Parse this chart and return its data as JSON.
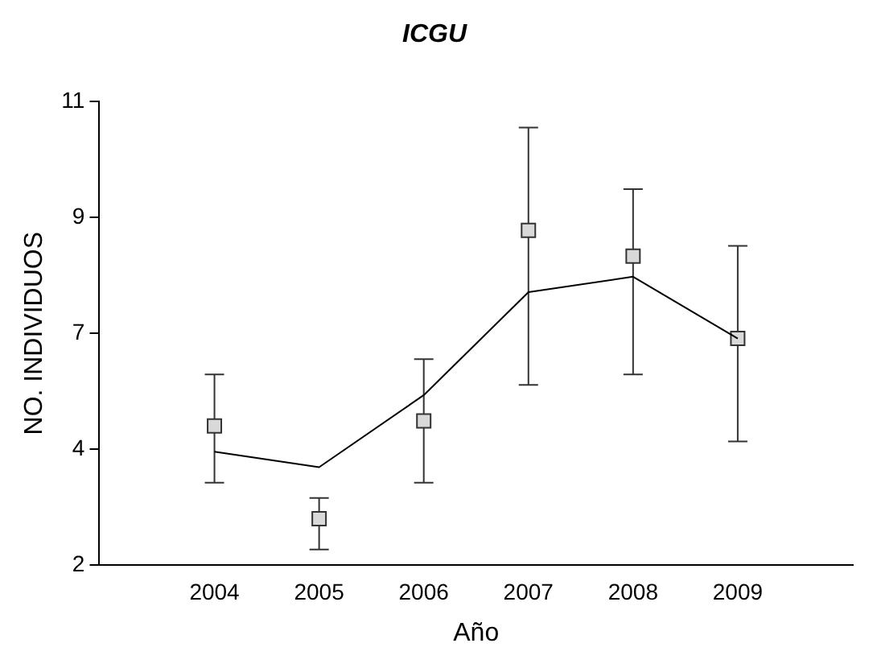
{
  "chart_data": {
    "type": "line",
    "title": "ICGU",
    "xlabel": "Año",
    "ylabel": "NO. INDIVIDUOS",
    "x": [
      2004,
      2005,
      2006,
      2007,
      2008,
      2009
    ],
    "xlim": [
      2002.9,
      2010.1
    ],
    "xticks": [
      2004,
      2005,
      2006,
      2007,
      2008,
      2009
    ],
    "ylim": [
      2,
      11
    ],
    "yticks": [
      2,
      {
        "value": 4.25,
        "label": "4"
      },
      {
        "value": 6.5,
        "label": "7"
      },
      {
        "value": 8.75,
        "label": "9"
      },
      11
    ],
    "grid": false,
    "legend": false,
    "series": [
      {
        "color": "#000000",
        "marker": "none",
        "line_style": "solid",
        "values": [
          4.2,
          3.9,
          5.3,
          7.3,
          7.6,
          6.4
        ]
      },
      {
        "type": "scatter",
        "color": "#d9d9d9",
        "marker": "square",
        "values": [
          4.7,
          2.9,
          4.8,
          8.5,
          8.0,
          6.4
        ],
        "errors": [
          [
            3.6,
            5.7
          ],
          [
            2.3,
            3.3
          ],
          [
            3.6,
            6.0
          ],
          [
            5.5,
            10.5
          ],
          [
            5.7,
            9.3
          ],
          [
            4.4,
            8.2
          ]
        ]
      }
    ]
  }
}
